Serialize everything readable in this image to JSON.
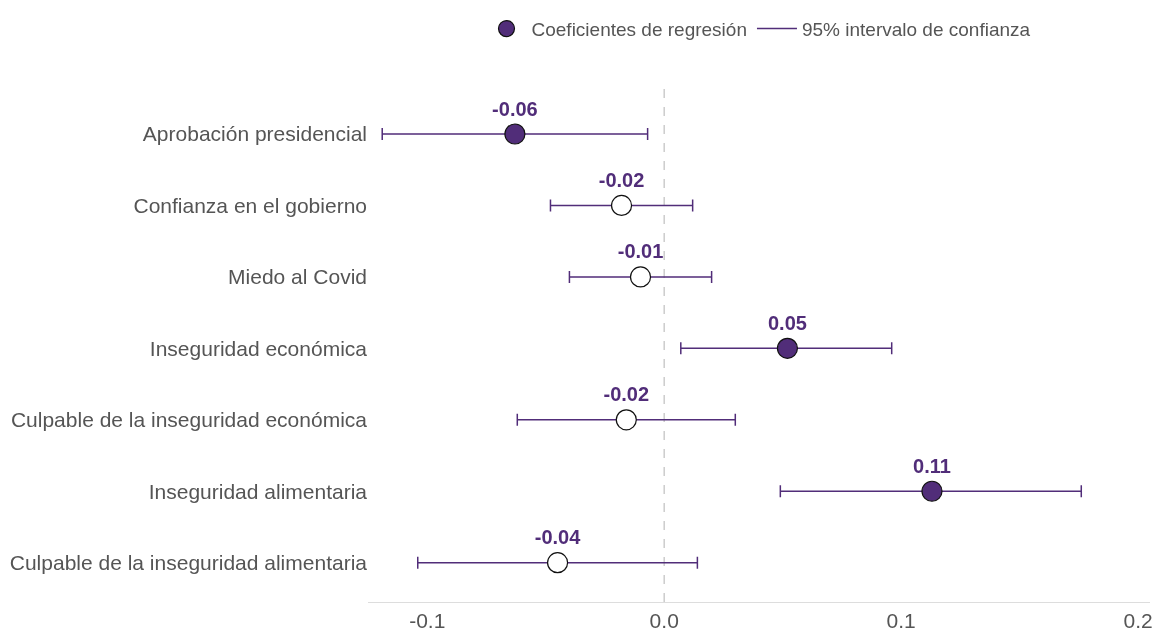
{
  "chart_data": {
    "type": "scatter",
    "orientation": "horizontal",
    "categories": [
      "Aprobación presidencial",
      "Confianza en el gobierno",
      "Miedo al Covid",
      "Inseguridad económica",
      "Culpable de la inseguridad económica",
      "Inseguridad alimentaria",
      "Culpable de la inseguridad alimentaria"
    ],
    "series": [
      {
        "name": "Coeficientes de regresión",
        "color": "#512d79",
        "marker": "circle",
        "colors": [
          "#512d79",
          "#ffffff",
          "#ffffff",
          "#512d79",
          "#ffffff",
          "#512d79",
          "#ffffff"
        ],
        "values": [
          -0.063,
          -0.018,
          -0.01,
          0.052,
          -0.016,
          0.113,
          -0.045
        ],
        "value_labels": [
          "-0.06",
          "-0.02",
          "-0.01",
          "0.05",
          "-0.02",
          "0.11",
          "-0.04"
        ],
        "errors": [
          [
            -0.119,
            -0.007
          ],
          [
            -0.048,
            0.012
          ],
          [
            -0.04,
            0.02
          ],
          [
            0.007,
            0.096
          ],
          [
            -0.062,
            0.03
          ],
          [
            0.049,
            0.176
          ],
          [
            -0.104,
            0.014
          ]
        ]
      }
    ],
    "annotations": [
      "95% intervalo de confianza"
    ],
    "xlim": [
      -0.125,
      0.205
    ],
    "xticks": [
      -0.1,
      {
        "value": 0,
        "label": "0.0"
      },
      0.1,
      0.2
    ],
    "ref_lines": [
      {
        "axis": "x",
        "value": 0,
        "color": "#cccccc",
        "line_style": "dashed"
      }
    ],
    "grid": false,
    "legend": "top"
  }
}
